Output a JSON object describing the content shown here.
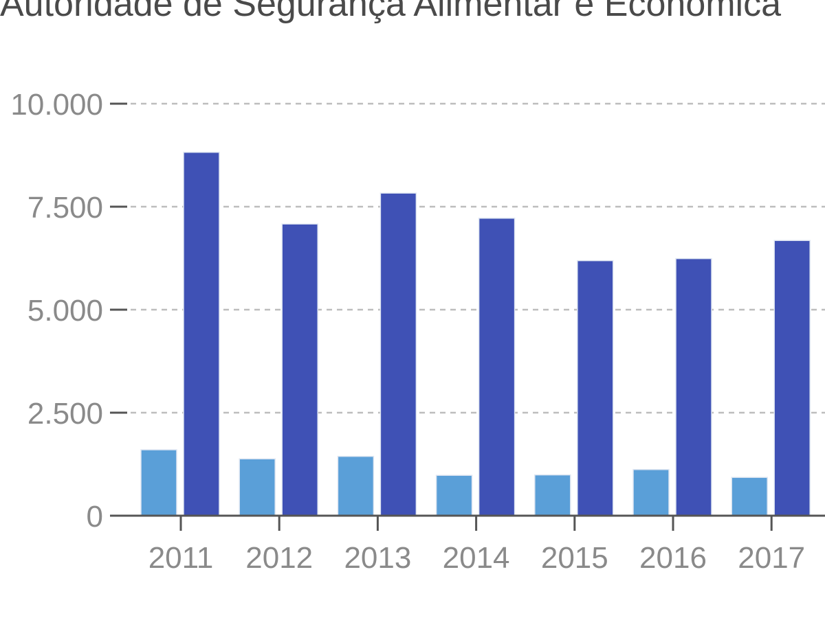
{
  "chart_data": {
    "type": "bar",
    "title": "Autoridade de Segurança Alimentar e Económica",
    "xlabel": "",
    "ylabel": "",
    "categories": [
      "2011",
      "2012",
      "2013",
      "2014",
      "2015",
      "2016",
      "2017"
    ],
    "series": [
      {
        "values": [
          1600,
          1380,
          1440,
          980,
          990,
          1120,
          930
        ]
      },
      {
        "values": [
          8820,
          7080,
          7830,
          7220,
          6190,
          6240,
          6680
        ]
      }
    ],
    "series_colors": [
      "#5a9fd8",
      "#3f51b5"
    ],
    "ylim": [
      0,
      10000
    ],
    "yticks": [
      0,
      2500,
      5000,
      7500,
      10000
    ],
    "ytick_labels": [
      "0",
      "2.500",
      "5.000",
      "7.500",
      "10.000"
    ],
    "grid": "horizontal-dashed",
    "legend": "none"
  }
}
